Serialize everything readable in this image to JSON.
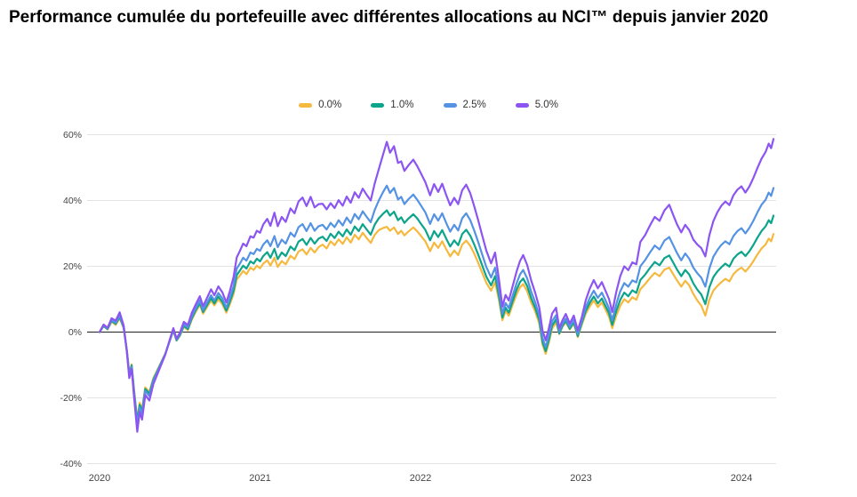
{
  "title": "Performance cumulée du portefeuille avec différentes allocations au NCI™ depuis janvier 2020",
  "colors": {
    "background": "#FFFFFF",
    "grid": "#E3E3E3",
    "zero_line": "#212121",
    "axis_label": "#444444",
    "title_text": "#000000",
    "legend_text": "#333333"
  },
  "chart_data": {
    "type": "line",
    "title": "Performance cumulée du portefeuille avec différentes allocations au NCI™ depuis janvier 2020",
    "xlabel": "",
    "ylabel": "",
    "grid": true,
    "legend_position": "top-center",
    "ylim": [
      -40,
      60
    ],
    "x_unit": "years_since_jan_2020",
    "y_unit": "percent_cumulative_return",
    "y_ticks": [
      {
        "label": "60%",
        "value": 60
      },
      {
        "label": "40%",
        "value": 40
      },
      {
        "label": "20%",
        "value": 20
      },
      {
        "label": "0%",
        "value": 0
      },
      {
        "label": "-20%",
        "value": -20
      },
      {
        "label": "-40%",
        "value": -40
      }
    ],
    "x_ticks": [
      {
        "label": "2020",
        "t": 0
      },
      {
        "label": "2021",
        "t": 1
      },
      {
        "label": "2022",
        "t": 2
      },
      {
        "label": "2023",
        "t": 3
      },
      {
        "label": "2024",
        "t": 4
      }
    ],
    "x": [
      0,
      0.025,
      0.05,
      0.075,
      0.1,
      0.125,
      0.15,
      0.17,
      0.185,
      0.2,
      0.215,
      0.235,
      0.25,
      0.265,
      0.285,
      0.31,
      0.335,
      0.36,
      0.385,
      0.41,
      0.435,
      0.46,
      0.48,
      0.5,
      0.525,
      0.55,
      0.575,
      0.6,
      0.625,
      0.645,
      0.67,
      0.695,
      0.715,
      0.74,
      0.765,
      0.79,
      0.81,
      0.835,
      0.855,
      0.875,
      0.895,
      0.915,
      0.94,
      0.96,
      0.98,
      1,
      1.02,
      1.045,
      1.065,
      1.09,
      1.11,
      1.135,
      1.16,
      1.19,
      1.215,
      1.24,
      1.265,
      1.29,
      1.315,
      1.34,
      1.365,
      1.39,
      1.415,
      1.44,
      1.465,
      1.49,
      1.515,
      1.54,
      1.565,
      1.59,
      1.615,
      1.64,
      1.665,
      1.69,
      1.715,
      1.74,
      1.765,
      1.79,
      1.81,
      1.835,
      1.86,
      1.88,
      1.9,
      1.925,
      1.955,
      1.98,
      2,
      2.03,
      2.06,
      2.085,
      2.11,
      2.135,
      2.16,
      2.185,
      2.21,
      2.235,
      2.26,
      2.285,
      2.31,
      2.335,
      2.36,
      2.385,
      2.41,
      2.44,
      2.465,
      2.49,
      2.51,
      2.53,
      2.55,
      2.575,
      2.6,
      2.62,
      2.64,
      2.665,
      2.69,
      2.715,
      2.74,
      2.76,
      2.78,
      2.8,
      2.82,
      2.845,
      2.865,
      2.885,
      2.905,
      2.93,
      2.955,
      2.98,
      3.005,
      3.03,
      3.055,
      3.08,
      3.105,
      3.13,
      3.155,
      3.175,
      3.195,
      3.22,
      3.245,
      3.27,
      3.295,
      3.32,
      3.345,
      3.37,
      3.4,
      3.43,
      3.46,
      3.49,
      3.52,
      3.55,
      3.575,
      3.6,
      3.625,
      3.65,
      3.675,
      3.7,
      3.725,
      3.75,
      3.775,
      3.8,
      3.825,
      3.85,
      3.875,
      3.9,
      3.925,
      3.95,
      3.975,
      4,
      4.025,
      4.05,
      4.075,
      4.1,
      4.125,
      4.15,
      4.17,
      4.185,
      4.2
    ],
    "series": [
      {
        "name": "0.0%",
        "color": "#F6B93F",
        "values": [
          0,
          1.8,
          0.8,
          3.2,
          2.2,
          4.2,
          1.2,
          -5.5,
          -12.5,
          -9.8,
          -17.5,
          -26.5,
          -21.5,
          -23.5,
          -16.8,
          -18.2,
          -14,
          -11.5,
          -9,
          -6.5,
          -3,
          0.4,
          -2.6,
          -1.2,
          1.6,
          0.6,
          3.8,
          6.2,
          8.3,
          5.6,
          7.6,
          9.6,
          8.1,
          10,
          8.5,
          5.9,
          8.2,
          11.5,
          16,
          17.2,
          18.6,
          17.6,
          19.6,
          18.9,
          20.2,
          19.4,
          20.8,
          21.8,
          20.2,
          22.6,
          19.8,
          21.6,
          20.6,
          23.2,
          22.2,
          24.5,
          25.2,
          23.6,
          25.6,
          24.2,
          25.8,
          26.6,
          25.4,
          27.6,
          26.4,
          28.2,
          26.8,
          28.8,
          27.2,
          29.6,
          28.2,
          30.2,
          28.6,
          27.1,
          29.6,
          31,
          31.6,
          32,
          30.8,
          31.8,
          29.8,
          30.8,
          29.4,
          30.6,
          31.8,
          30.6,
          29.4,
          27.6,
          24.6,
          27.2,
          25.6,
          27.6,
          25.2,
          23,
          24.8,
          23.4,
          26.6,
          27.8,
          26.2,
          23.8,
          21,
          18,
          15,
          12.6,
          15.2,
          9.5,
          3.6,
          6.4,
          5,
          8.4,
          11.6,
          13.6,
          14.6,
          12.4,
          9,
          6.2,
          2.6,
          -3.8,
          -6.6,
          -3.2,
          1,
          3,
          -0.6,
          1.6,
          3,
          0.8,
          2.6,
          -1.5,
          2.2,
          5.6,
          7.8,
          9.6,
          7.6,
          9,
          6.6,
          4.6,
          1.2,
          5,
          8,
          10,
          9,
          10.6,
          9.8,
          13,
          14.6,
          16.4,
          18,
          17,
          19,
          19.6,
          17.6,
          15.6,
          13.8,
          15.6,
          14.2,
          11.6,
          9.6,
          8,
          5,
          9.8,
          12.6,
          14,
          15.2,
          16.2,
          15.4,
          17.6,
          18.8,
          19.6,
          18.4,
          19.8,
          21.6,
          23.6,
          25.4,
          26.6,
          28.4,
          27.6,
          29.8
        ]
      },
      {
        "name": "1.0%",
        "color": "#0CA48A",
        "values": [
          0,
          1.9,
          0.9,
          3.4,
          2.5,
          4.6,
          1.4,
          -5.6,
          -12.8,
          -10.1,
          -18,
          -27.2,
          -22.1,
          -24.1,
          -17.3,
          -18.7,
          -14.4,
          -11.8,
          -9.2,
          -6.6,
          -3,
          0.6,
          -2.5,
          -1,
          1.9,
          0.9,
          4.2,
          6.7,
          8.8,
          6.1,
          8.2,
          10.3,
          8.7,
          10.8,
          9.2,
          6.5,
          9,
          12.5,
          17.3,
          18.7,
          20.2,
          19.3,
          21.5,
          20.8,
          22.3,
          21.5,
          23.1,
          24.3,
          22.6,
          25.3,
          22.2,
          24.2,
          23.1,
          26,
          24.9,
          27.5,
          28.3,
          26.5,
          28.6,
          26.9,
          28.4,
          29,
          27.7,
          29.9,
          28.6,
          30.5,
          29.1,
          31.2,
          29.6,
          32.1,
          30.7,
          32.8,
          31.2,
          29.6,
          32.7,
          34.6,
          35.9,
          37,
          35.4,
          36.6,
          34,
          34.9,
          33.2,
          34.5,
          35.8,
          34.5,
          33.1,
          31.1,
          27.9,
          30.7,
          28.9,
          31,
          28.4,
          26,
          27.9,
          26.4,
          29.8,
          31.1,
          29.3,
          26.6,
          23.5,
          20.2,
          16.9,
          14.2,
          17,
          10.7,
          4.4,
          7.4,
          5.9,
          9.5,
          13,
          15.2,
          16.3,
          14,
          10.3,
          7.3,
          3.6,
          -3,
          -5.8,
          -2.4,
          1.9,
          3.9,
          -0.4,
          1.9,
          3.4,
          1,
          3,
          -1.2,
          2.7,
          6.4,
          8.9,
          10.8,
          8.7,
          10.2,
          7.7,
          5.7,
          2.2,
          6.4,
          9.8,
          12,
          10.9,
          12.7,
          11.9,
          15.8,
          17.5,
          19.5,
          21.3,
          20.3,
          22.5,
          23.3,
          21.1,
          18.9,
          17,
          18.9,
          17.5,
          14.8,
          12.9,
          11.4,
          8.5,
          13.6,
          16.7,
          18.4,
          19.7,
          20.8,
          19.9,
          22.3,
          23.6,
          24.4,
          23.1,
          24.6,
          26.5,
          28.7,
          30.7,
          32.1,
          34,
          33.1,
          35.4
        ]
      },
      {
        "name": "2.5%",
        "color": "#5492E4",
        "values": [
          0,
          2.1,
          1.1,
          3.7,
          2.8,
          5.1,
          1.6,
          -5.8,
          -13.2,
          -10.5,
          -18.6,
          -28.4,
          -22.9,
          -25,
          -17.9,
          -19.5,
          -14.9,
          -12.1,
          -9.4,
          -6.6,
          -2.9,
          0.8,
          -2.3,
          -0.7,
          2.4,
          1.4,
          4.8,
          7.3,
          9.6,
          6.7,
          9,
          11.2,
          9.6,
          11.9,
          10.3,
          7.4,
          10.1,
          14,
          19.3,
          20.8,
          22.6,
          21.7,
          24.2,
          23.7,
          25.3,
          24.7,
          26.6,
          27.9,
          26.1,
          29.2,
          25.8,
          28.1,
          26.9,
          30.2,
          29,
          31.9,
          32.8,
          30.7,
          33.1,
          30.8,
          32.2,
          32.6,
          31.2,
          33.2,
          31.9,
          34,
          32.4,
          34.8,
          33.1,
          35.9,
          34.3,
          36.7,
          35,
          33.4,
          37.2,
          40,
          42.4,
          44.5,
          42.3,
          43.8,
          40.3,
          41.1,
          38.9,
          40.4,
          41.8,
          40.2,
          38.7,
          36.4,
          32.9,
          35.8,
          33.9,
          36.1,
          33.2,
          30.5,
          32.6,
          30.9,
          34.6,
          36.1,
          34,
          30.8,
          27.3,
          23.5,
          19.8,
          16.6,
          19.6,
          12.5,
          5.6,
          8.8,
          7.3,
          11.2,
          15,
          17.5,
          18.9,
          16.3,
          12.3,
          9,
          5,
          -1.7,
          -4.6,
          -1.1,
          3.3,
          5.1,
          0.2,
          2.4,
          4.1,
          1.5,
          3.7,
          -0.6,
          3.3,
          7.6,
          10.4,
          12.6,
          10.4,
          12,
          9.4,
          7.2,
          3.6,
          8.5,
          12.4,
          14.9,
          13.8,
          15.7,
          15.1,
          20,
          21.9,
          24.2,
          26.3,
          25.1,
          27.8,
          28.9,
          26.4,
          23.9,
          21.8,
          23.9,
          22.3,
          19.6,
          17.9,
          16.5,
          13.8,
          19.3,
          22.9,
          24.9,
          26.5,
          27.6,
          26.7,
          29.2,
          30.7,
          31.6,
          30,
          31.7,
          33.9,
          36.4,
          38.7,
          40.2,
          42.4,
          41.4,
          43.8
        ]
      },
      {
        "name": "5.0%",
        "color": "#8C55F2",
        "values": [
          0,
          2.3,
          1.3,
          4.2,
          3.5,
          6,
          2,
          -6,
          -14,
          -11.2,
          -19.8,
          -30.3,
          -24.3,
          -26.6,
          -19.1,
          -20.8,
          -15.8,
          -12.8,
          -9.8,
          -6.8,
          -2.7,
          1.2,
          -2,
          -0.2,
          3.1,
          2.1,
          5.9,
          8.5,
          10.9,
          7.9,
          10.4,
          13,
          11.2,
          13.9,
          12.1,
          9,
          12.1,
          16.7,
          22.7,
          24.7,
          26.9,
          26.1,
          29.1,
          28.7,
          30.8,
          30.2,
          32.7,
          34.4,
          32.3,
          36.3,
          32.2,
          35,
          33.5,
          37.6,
          36.1,
          39.7,
          40.9,
          38.3,
          41.1,
          37.9,
          38.9,
          39,
          37.3,
          39.2,
          37.7,
          40.1,
          38.4,
          41.2,
          39.3,
          42.5,
          40.8,
          43.6,
          41.7,
          40,
          45.3,
          49.5,
          53.7,
          57.8,
          54.5,
          56.5,
          51.4,
          51.9,
          49,
          50.7,
          52.4,
          50.4,
          48.5,
          45.6,
          41.6,
          45,
          42.6,
          45.1,
          41.7,
          38.5,
          40.8,
          38.9,
          43.1,
          44.8,
          42.2,
          38.2,
          33.9,
          29.3,
          24.8,
          20.9,
          24.2,
          15.7,
          7.7,
          11.3,
          9.6,
          14.1,
          18.6,
          21.6,
          23.4,
          20.4,
          15.7,
          11.9,
          7.5,
          0.6,
          -2.5,
          1.2,
          5.6,
          7.4,
          1.2,
          3.6,
          5.5,
          2.6,
          5,
          0.5,
          4.5,
          9.7,
          13.2,
          15.8,
          13.3,
          15.2,
          12.3,
          10,
          6.1,
          12.2,
          17,
          20,
          18.8,
          21.2,
          20.6,
          27.4,
          29.5,
          32.4,
          35,
          33.8,
          37,
          38.7,
          35.6,
          32.6,
          30.3,
          32.6,
          31,
          28.1,
          26.6,
          25.5,
          23,
          29.4,
          33.7,
          36.4,
          38.4,
          39.7,
          38.6,
          41.6,
          43.3,
          44.3,
          42.4,
          44.3,
          46.9,
          49.9,
          52.7,
          54.7,
          57.3,
          55.9,
          58.7
        ]
      }
    ]
  }
}
